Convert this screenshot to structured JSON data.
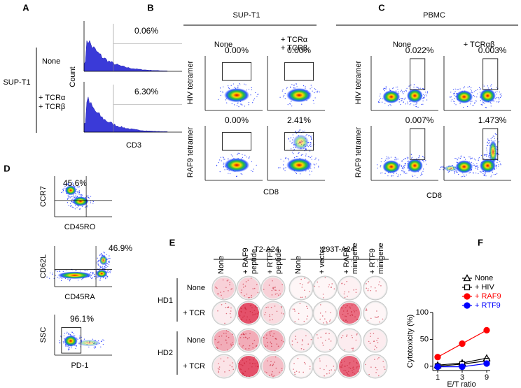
{
  "panel_a": {
    "letter": "A",
    "cell_line": "SUP-T1",
    "conditions": {
      "none": "None",
      "tcr": [
        "+ TCRα",
        "+ TCRβ"
      ]
    },
    "percentages": [
      "0.06%",
      "6.30%"
    ],
    "y_label": "Count",
    "x_label": "CD3"
  },
  "panel_b": {
    "letter": "B",
    "title": "SUP-T1",
    "columns": {
      "none": "None",
      "tcr": [
        "+ TCRα",
        "+ TCRβ"
      ]
    },
    "rows": [
      "HIV tetramer",
      "RAF9 tetramer"
    ],
    "percentages": [
      [
        "0.00%",
        "0.00%"
      ],
      [
        "0.00%",
        "2.41%"
      ]
    ],
    "x_label": "CD8"
  },
  "panel_c": {
    "letter": "C",
    "title": "PBMC",
    "columns": [
      "None",
      "+ TCRαβ"
    ],
    "rows": [
      "HIV tetramer",
      "RAF9 tetramer"
    ],
    "percentages": [
      [
        "0.022%",
        "0.003%"
      ],
      [
        "0.007%",
        "1.473%"
      ]
    ],
    "x_label": "CD8"
  },
  "panel_d": {
    "letter": "D",
    "plots": [
      {
        "y_label": "CCR7",
        "x_label": "CD45RO",
        "percentage": "45.6%"
      },
      {
        "y_label": "CD62L",
        "x_label": "CD45RA",
        "percentage": "46.9%"
      },
      {
        "y_label": "SSC",
        "x_label": "PD-1",
        "percentage": "96.1%"
      }
    ]
  },
  "panel_e": {
    "letter": "E",
    "groups": [
      {
        "name": "T2-A24",
        "columns": [
          [
            "None"
          ],
          [
            "+ RAF9",
            "peptide"
          ],
          [
            "+ RTF9",
            "peptide"
          ]
        ]
      },
      {
        "name": "293T-A24",
        "columns": [
          [
            "None"
          ],
          [
            "+ vector"
          ],
          [
            "+ RAF9",
            "minigene"
          ],
          [
            "+ RTF9",
            "minigene"
          ]
        ]
      }
    ],
    "donors": [
      {
        "name": "HD1",
        "rows": [
          "None",
          "+ TCR"
        ]
      },
      {
        "name": "HD2",
        "rows": [
          "None",
          "+ TCR"
        ]
      }
    ]
  },
  "chart_data": {
    "type": "line",
    "letter": "F",
    "x_label": "E/T ratio",
    "y_label": "Cytotoxicity (%)",
    "categories": [
      "1",
      "3",
      "9"
    ],
    "ylim": [
      -8,
      100
    ],
    "yticks": [
      0,
      50,
      100
    ],
    "series": [
      {
        "name": "None",
        "color": "#000000",
        "marker": "open-triangle",
        "values": [
          2,
          6,
          15
        ]
      },
      {
        "name": "+ HIV",
        "color": "#000000",
        "marker": "open-square",
        "values": [
          0,
          4,
          10
        ]
      },
      {
        "name": "+ RAF9",
        "color": "#ff0000",
        "marker": "circle",
        "values": [
          17,
          42,
          67
        ]
      },
      {
        "name": "+ RTF9",
        "color": "#0000ff",
        "marker": "circle",
        "values": [
          -1,
          -1,
          5
        ]
      }
    ]
  }
}
